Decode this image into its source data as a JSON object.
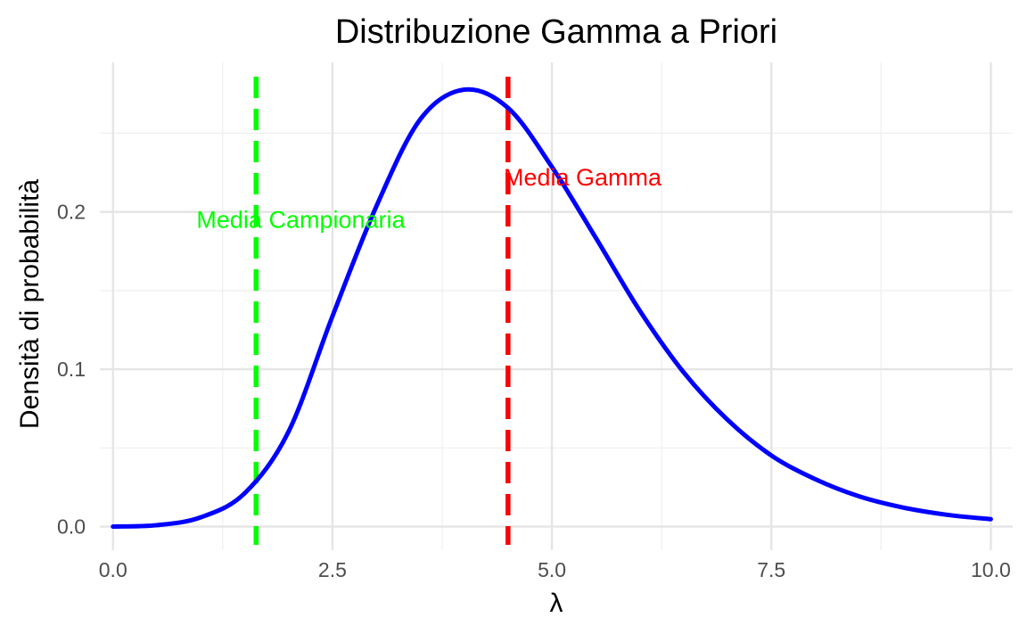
{
  "chart_data": {
    "type": "line",
    "title": "Distribuzione Gamma a Priori",
    "xlabel": "λ",
    "ylabel": "Densità di probabilità",
    "xlim": [
      -0.15,
      10.25
    ],
    "ylim": [
      -0.015,
      0.295
    ],
    "x_ticks": [
      0,
      2.5,
      5,
      7.5,
      10
    ],
    "x_tick_labels": [
      "0.0",
      "2.5",
      "5.0",
      "7.5",
      "10.0"
    ],
    "y_ticks": [
      0,
      0.1,
      0.2
    ],
    "y_tick_labels": [
      "0.0",
      "0.1",
      "0.2"
    ],
    "grid": true,
    "series": [
      {
        "type": "line",
        "color": "#0000ff",
        "x": [
          0,
          0.5,
          1,
          1.5,
          2,
          2.5,
          3,
          3.5,
          4,
          4.5,
          5,
          5.5,
          6,
          6.5,
          7,
          7.5,
          8,
          8.5,
          9,
          9.5,
          10
        ],
        "y": [
          0,
          0.0009,
          0.0059,
          0.0212,
          0.0604,
          0.1337,
          0.2035,
          0.2588,
          0.2777,
          0.2661,
          0.2286,
          0.1835,
          0.1373,
          0.0981,
          0.0679,
          0.0452,
          0.0301,
          0.0192,
          0.0121,
          0.0075,
          0.0047
        ]
      }
    ],
    "vlines": [
      {
        "x": 1.63,
        "color": "#00ff00",
        "style": "dashed"
      },
      {
        "x": 4.5,
        "color": "#ff0000",
        "style": "dashed"
      }
    ],
    "annotations": [
      {
        "text": "Media Campionaria",
        "x": 2.14,
        "y": 0.195,
        "color": "#00ff00"
      },
      {
        "text": "Media Gamma",
        "x": 5.35,
        "y": 0.222,
        "color": "#ff0000"
      }
    ]
  }
}
